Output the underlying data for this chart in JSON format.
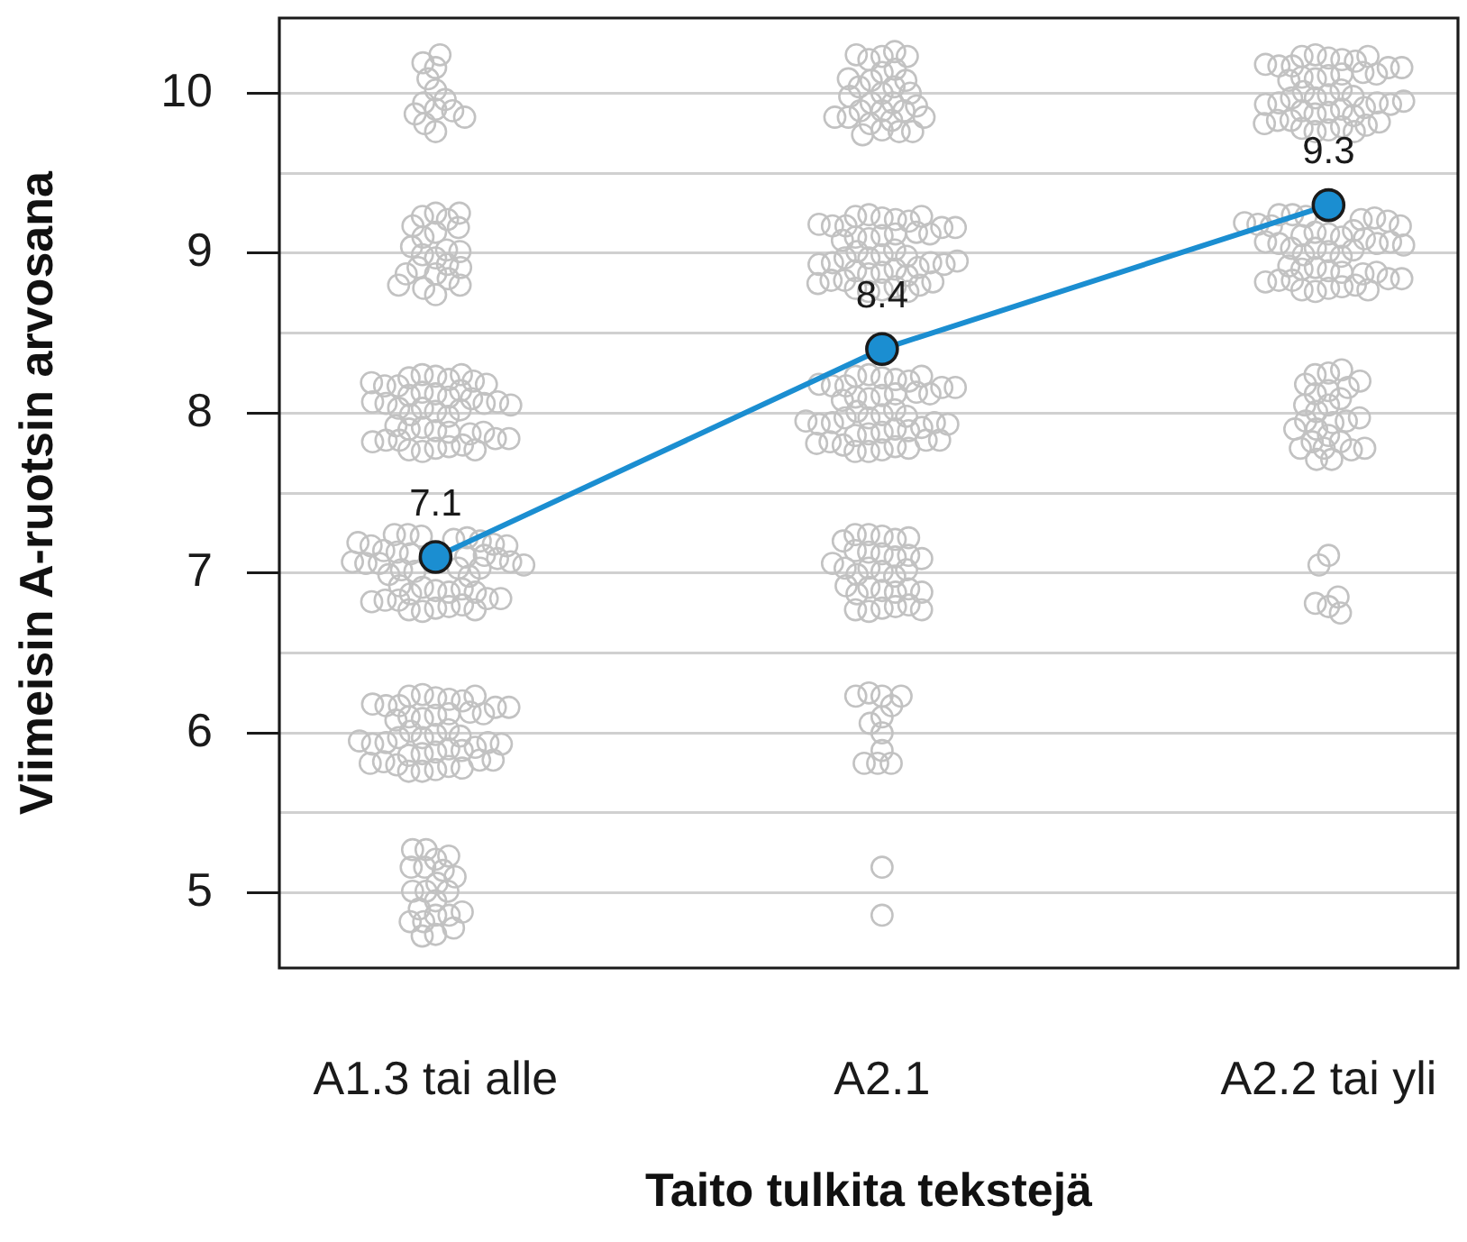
{
  "chart_data": {
    "type": "scatter",
    "xlabel": "Taito tulkita tekstejä",
    "ylabel": "Viimeisin A-ruotsin arvosana",
    "categories": [
      "A1.3 tai alle",
      "A2.1",
      "A2.2 tai yli"
    ],
    "ylim": [
      4.53,
      10.47
    ],
    "yticks": [
      5,
      {
        "value": 5.5,
        "label": null
      },
      6,
      {
        "value": 6.5,
        "label": null
      },
      7,
      {
        "value": 7.5,
        "label": null
      },
      8,
      {
        "value": 8.5,
        "label": null
      },
      9,
      {
        "value": 9.5,
        "label": null
      },
      10
    ],
    "grid": "y",
    "marker": "circle",
    "series": [
      {
        "color": "#c2c2c2",
        "x": [
          "A1.3 tai alle",
          "A1.3 tai alle",
          "A1.3 tai alle",
          "A1.3 tai alle",
          "A1.3 tai alle",
          "A1.3 tai alle",
          "A1.3 tai alle",
          "A1.3 tai alle",
          "A1.3 tai alle",
          "A1.3 tai alle",
          "A1.3 tai alle",
          "A1.3 tai alle",
          "A1.3 tai alle",
          "A1.3 tai alle",
          "A1.3 tai alle",
          "A1.3 tai alle",
          "A1.3 tai alle",
          "A1.3 tai alle",
          "A1.3 tai alle",
          "A1.3 tai alle",
          "A1.3 tai alle",
          "A1.3 tai alle",
          "A1.3 tai alle",
          "A1.3 tai alle",
          "A1.3 tai alle",
          "A1.3 tai alle",
          "A1.3 tai alle",
          "A1.3 tai alle",
          "A1.3 tai alle",
          "A1.3 tai alle",
          "A1.3 tai alle",
          "A1.3 tai alle",
          "A1.3 tai alle",
          "A1.3 tai alle",
          "A1.3 tai alle",
          "A1.3 tai alle",
          "A1.3 tai alle",
          "A1.3 tai alle",
          "A1.3 tai alle",
          "A1.3 tai alle",
          "A1.3 tai alle",
          "A1.3 tai alle",
          "A1.3 tai alle",
          "A1.3 tai alle",
          "A1.3 tai alle",
          "A1.3 tai alle",
          "A1.3 tai alle",
          "A1.3 tai alle",
          "A1.3 tai alle",
          "A1.3 tai alle",
          "A1.3 tai alle",
          "A1.3 tai alle",
          "A1.3 tai alle",
          "A1.3 tai alle",
          "A1.3 tai alle",
          "A1.3 tai alle",
          "A1.3 tai alle",
          "A1.3 tai alle",
          "A1.3 tai alle",
          "A1.3 tai alle",
          "A1.3 tai alle",
          "A1.3 tai alle",
          "A1.3 tai alle",
          "A1.3 tai alle",
          "A1.3 tai alle",
          "A1.3 tai alle",
          "A1.3 tai alle",
          "A1.3 tai alle",
          "A1.3 tai alle",
          "A1.3 tai alle",
          "A1.3 tai alle",
          "A1.3 tai alle",
          "A1.3 tai alle",
          "A1.3 tai alle",
          "A1.3 tai alle",
          "A1.3 tai alle",
          "A1.3 tai alle",
          "A1.3 tai alle",
          "A1.3 tai alle",
          "A1.3 tai alle",
          "A1.3 tai alle",
          "A1.3 tai alle",
          "A1.3 tai alle",
          "A1.3 tai alle",
          "A1.3 tai alle",
          "A1.3 tai alle",
          "A1.3 tai alle",
          "A1.3 tai alle",
          "A1.3 tai alle",
          "A1.3 tai alle",
          "A1.3 tai alle",
          "A1.3 tai alle",
          "A1.3 tai alle",
          "A1.3 tai alle",
          "A1.3 tai alle",
          "A1.3 tai alle",
          "A1.3 tai alle",
          "A1.3 tai alle",
          "A1.3 tai alle",
          "A1.3 tai alle",
          "A1.3 tai alle",
          "A1.3 tai alle",
          "A1.3 tai alle",
          "A1.3 tai alle",
          "A1.3 tai alle",
          "A1.3 tai alle",
          "A1.3 tai alle",
          "A1.3 tai alle",
          "A1.3 tai alle",
          "A1.3 tai alle",
          "A1.3 tai alle",
          "A1.3 tai alle",
          "A1.3 tai alle",
          "A1.3 tai alle",
          "A1.3 tai alle",
          "A1.3 tai alle",
          "A1.3 tai alle",
          "A1.3 tai alle",
          "A1.3 tai alle",
          "A1.3 tai alle",
          "A1.3 tai alle",
          "A1.3 tai alle",
          "A1.3 tai alle",
          "A1.3 tai alle",
          "A1.3 tai alle",
          "A1.3 tai alle",
          "A1.3 tai alle",
          "A1.3 tai alle",
          "A1.3 tai alle",
          "A1.3 tai alle",
          "A1.3 tai alle",
          "A1.3 tai alle",
          "A1.3 tai alle",
          "A1.3 tai alle",
          "A1.3 tai alle",
          "A1.3 tai alle",
          "A1.3 tai alle",
          "A1.3 tai alle",
          "A1.3 tai alle",
          "A1.3 tai alle",
          "A1.3 tai alle",
          "A1.3 tai alle",
          "A1.3 tai alle",
          "A1.3 tai alle",
          "A1.3 tai alle",
          "A1.3 tai alle",
          "A1.3 tai alle",
          "A1.3 tai alle",
          "A1.3 tai alle",
          "A1.3 tai alle",
          "A1.3 tai alle",
          "A1.3 tai alle",
          "A1.3 tai alle",
          "A1.3 tai alle",
          "A1.3 tai alle",
          "A1.3 tai alle",
          "A1.3 tai alle",
          "A1.3 tai alle",
          "A1.3 tai alle",
          "A1.3 tai alle",
          "A1.3 tai alle",
          "A1.3 tai alle",
          "A1.3 tai alle",
          "A1.3 tai alle",
          "A1.3 tai alle",
          "A1.3 tai alle",
          "A1.3 tai alle",
          "A1.3 tai alle",
          "A1.3 tai alle",
          "A1.3 tai alle",
          "A1.3 tai alle",
          "A1.3 tai alle",
          "A1.3 tai alle",
          "A1.3 tai alle",
          "A1.3 tai alle",
          "A1.3 tai alle",
          "A1.3 tai alle",
          "A1.3 tai alle",
          "A1.3 tai alle",
          "A1.3 tai alle",
          "A1.3 tai alle",
          "A1.3 tai alle",
          "A1.3 tai alle",
          "A1.3 tai alle",
          "A1.3 tai alle",
          "A1.3 tai alle",
          "A1.3 tai alle",
          "A1.3 tai alle",
          "A1.3 tai alle",
          "A1.3 tai alle",
          "A1.3 tai alle",
          "A1.3 tai alle",
          "A1.3 tai alle"
        ],
        "values": [
          10.16,
          10.02,
          9.9,
          9.94,
          10.19,
          10.24,
          10.09,
          9.96,
          9.89,
          9.76,
          9.81,
          9.87,
          9.85,
          9.13,
          9.25,
          9.23,
          9.21,
          8.97,
          8.87,
          8.74,
          8.78,
          8.84,
          8.8,
          8.99,
          9.1,
          9.02,
          8.91,
          9.04,
          8.87,
          9.17,
          9.16,
          8.93,
          9.01,
          9.25,
          8.91,
          8.8,
          7.78,
          7.76,
          7.79,
          7.77,
          7.8,
          7.77,
          7.89,
          7.91,
          7.88,
          7.9,
          7.87,
          7.92,
          7.88,
          8.01,
          8.03,
          7.98,
          8.02,
          7.99,
          8.03,
          8.12,
          8.1,
          8.13,
          8.11,
          8.14,
          8.09,
          8.23,
          8.21,
          8.24,
          8.22,
          8.24,
          8.2,
          8.06,
          7.83,
          7.83,
          7.84,
          7.82,
          7.84,
          8.06,
          8.07,
          8.07,
          8.05,
          8.17,
          8.18,
          8.17,
          8.19,
          6.78,
          6.76,
          6.79,
          6.77,
          6.8,
          6.77,
          6.89,
          6.91,
          6.88,
          6.9,
          6.87,
          6.92,
          6.88,
          7.01,
          7.03,
          6.98,
          7.02,
          6.99,
          7.03,
          7.12,
          7.1,
          7.13,
          7.11,
          7.14,
          7.09,
          7.23,
          7.21,
          7.24,
          7.22,
          7.24,
          7.2,
          7.06,
          6.83,
          6.83,
          6.84,
          6.82,
          6.84,
          7.06,
          7.07,
          7.07,
          7.05,
          7.17,
          7.18,
          7.17,
          7.19,
          6.22,
          6.24,
          6.21,
          6.23,
          6.2,
          6.23,
          6.11,
          6.09,
          6.12,
          6.1,
          6.13,
          6.08,
          6.12,
          5.99,
          5.97,
          6.02,
          5.98,
          6.01,
          5.97,
          5.88,
          5.9,
          5.87,
          5.89,
          5.86,
          5.91,
          5.77,
          5.79,
          5.76,
          5.78,
          5.76,
          5.8,
          5.94,
          6.17,
          6.17,
          6.16,
          6.18,
          6.16,
          5.94,
          5.93,
          5.93,
          5.95,
          5.83,
          5.82,
          5.83,
          5.81,
          5.21,
          5.27,
          5.16,
          4.95,
          4.86,
          4.82,
          4.74,
          5.23,
          5.27,
          5.14,
          5.01,
          5.06,
          5.01,
          4.86,
          4.82,
          4.88,
          4.78,
          4.73,
          5.01,
          5.1,
          4.9,
          5.16
        ]
      },
      {
        "color": "#c2c2c2",
        "x": [
          "A2.1",
          "A2.1",
          "A2.1",
          "A2.1",
          "A2.1",
          "A2.1",
          "A2.1",
          "A2.1",
          "A2.1",
          "A2.1",
          "A2.1",
          "A2.1",
          "A2.1",
          "A2.1",
          "A2.1",
          "A2.1",
          "A2.1",
          "A2.1",
          "A2.1",
          "A2.1",
          "A2.1",
          "A2.1",
          "A2.1",
          "A2.1",
          "A2.1",
          "A2.1",
          "A2.1",
          "A2.1",
          "A2.1",
          "A2.1",
          "A2.1",
          "A2.1",
          "A2.1",
          "A2.1",
          "A2.1",
          "A2.1",
          "A2.1",
          "A2.1",
          "A2.1",
          "A2.1",
          "A2.1",
          "A2.1",
          "A2.1",
          "A2.1",
          "A2.1",
          "A2.1",
          "A2.1",
          "A2.1",
          "A2.1",
          "A2.1",
          "A2.1",
          "A2.1",
          "A2.1",
          "A2.1",
          "A2.1",
          "A2.1",
          "A2.1",
          "A2.1",
          "A2.1",
          "A2.1",
          "A2.1",
          "A2.1",
          "A2.1",
          "A2.1",
          "A2.1",
          "A2.1",
          "A2.1",
          "A2.1",
          "A2.1",
          "A2.1",
          "A2.1",
          "A2.1",
          "A2.1",
          "A2.1",
          "A2.1",
          "A2.1",
          "A2.1",
          "A2.1",
          "A2.1",
          "A2.1",
          "A2.1",
          "A2.1",
          "A2.1",
          "A2.1",
          "A2.1",
          "A2.1",
          "A2.1",
          "A2.1",
          "A2.1",
          "A2.1",
          "A2.1",
          "A2.1",
          "A2.1",
          "A2.1",
          "A2.1",
          "A2.1",
          "A2.1",
          "A2.1",
          "A2.1",
          "A2.1",
          "A2.1",
          "A2.1",
          "A2.1",
          "A2.1",
          "A2.1",
          "A2.1",
          "A2.1",
          "A2.1",
          "A2.1",
          "A2.1",
          "A2.1",
          "A2.1",
          "A2.1",
          "A2.1",
          "A2.1",
          "A2.1",
          "A2.1",
          "A2.1",
          "A2.1",
          "A2.1",
          "A2.1",
          "A2.1",
          "A2.1",
          "A2.1",
          "A2.1",
          "A2.1",
          "A2.1",
          "A2.1",
          "A2.1",
          "A2.1",
          "A2.1",
          "A2.1",
          "A2.1",
          "A2.1",
          "A2.1",
          "A2.1",
          "A2.1",
          "A2.1",
          "A2.1",
          "A2.1",
          "A2.1",
          "A2.1",
          "A2.1",
          "A2.1",
          "A2.1",
          "A2.1",
          "A2.1",
          "A2.1",
          "A2.1",
          "A2.1",
          "A2.1",
          "A2.1",
          "A2.1",
          "A2.1",
          "A2.1",
          "A2.1",
          "A2.1",
          "A2.1",
          "A2.1",
          "A2.1",
          "A2.1",
          "A2.1",
          "A2.1",
          "A2.1",
          "A2.1",
          "A2.1"
        ],
        "values": [
          10.13,
          10.23,
          10.21,
          10.0,
          9.89,
          9.94,
          9.77,
          9.81,
          10.15,
          10.26,
          10.23,
          10.08,
          10.04,
          9.94,
          9.89,
          9.83,
          9.89,
          9.76,
          9.74,
          9.76,
          10.04,
          10.08,
          10.24,
          10.09,
          10.0,
          9.98,
          9.85,
          9.92,
          9.85,
          9.85,
          9.22,
          9.24,
          9.21,
          9.23,
          9.2,
          9.23,
          9.11,
          9.09,
          9.12,
          9.1,
          9.13,
          9.08,
          9.12,
          8.99,
          8.97,
          9.02,
          8.98,
          9.01,
          8.97,
          8.88,
          8.9,
          8.87,
          8.89,
          8.86,
          8.91,
          8.77,
          8.79,
          8.76,
          8.78,
          8.76,
          8.8,
          8.94,
          9.17,
          9.17,
          9.16,
          9.18,
          9.16,
          8.94,
          8.93,
          8.93,
          8.95,
          8.83,
          8.82,
          8.83,
          8.81,
          8.22,
          8.24,
          8.21,
          8.23,
          8.2,
          8.23,
          8.11,
          8.09,
          8.12,
          8.1,
          8.13,
          8.08,
          8.12,
          7.99,
          7.97,
          8.02,
          7.98,
          8.01,
          7.97,
          7.88,
          7.9,
          7.87,
          7.89,
          7.86,
          7.91,
          7.77,
          7.79,
          7.76,
          7.78,
          7.76,
          7.8,
          7.94,
          8.17,
          8.17,
          8.16,
          8.18,
          8.16,
          7.94,
          7.93,
          7.93,
          7.95,
          7.83,
          7.82,
          7.83,
          7.81,
          6.78,
          6.76,
          6.79,
          6.77,
          6.8,
          6.77,
          6.89,
          6.91,
          6.88,
          6.9,
          6.87,
          6.92,
          6.88,
          7.01,
          7.03,
          6.98,
          7.02,
          6.99,
          7.03,
          7.12,
          7.1,
          7.13,
          7.11,
          7.14,
          7.09,
          7.23,
          7.21,
          7.24,
          7.22,
          7.24,
          7.2,
          7.06,
          6.23,
          6.25,
          6.17,
          6.1,
          6.0,
          5.89,
          5.81,
          5.81,
          6.23,
          6.23,
          6.06,
          5.81,
          5.16,
          4.86
        ]
      },
      {
        "color": "#c2c2c2",
        "x": [
          "A2.2 tai yli",
          "A2.2 tai yli",
          "A2.2 tai yli",
          "A2.2 tai yli",
          "A2.2 tai yli",
          "A2.2 tai yli",
          "A2.2 tai yli",
          "A2.2 tai yli",
          "A2.2 tai yli",
          "A2.2 tai yli",
          "A2.2 tai yli",
          "A2.2 tai yli",
          "A2.2 tai yli",
          "A2.2 tai yli",
          "A2.2 tai yli",
          "A2.2 tai yli",
          "A2.2 tai yli",
          "A2.2 tai yli",
          "A2.2 tai yli",
          "A2.2 tai yli",
          "A2.2 tai yli",
          "A2.2 tai yli",
          "A2.2 tai yli",
          "A2.2 tai yli",
          "A2.2 tai yli",
          "A2.2 tai yli",
          "A2.2 tai yli",
          "A2.2 tai yli",
          "A2.2 tai yli",
          "A2.2 tai yli",
          "A2.2 tai yli",
          "A2.2 tai yli",
          "A2.2 tai yli",
          "A2.2 tai yli",
          "A2.2 tai yli",
          "A2.2 tai yli",
          "A2.2 tai yli",
          "A2.2 tai yli",
          "A2.2 tai yli",
          "A2.2 tai yli",
          "A2.2 tai yli",
          "A2.2 tai yli",
          "A2.2 tai yli",
          "A2.2 tai yli",
          "A2.2 tai yli",
          "A2.2 tai yli",
          "A2.2 tai yli",
          "A2.2 tai yli",
          "A2.2 tai yli",
          "A2.2 tai yli",
          "A2.2 tai yli",
          "A2.2 tai yli",
          "A2.2 tai yli",
          "A2.2 tai yli",
          "A2.2 tai yli",
          "A2.2 tai yli",
          "A2.2 tai yli",
          "A2.2 tai yli",
          "A2.2 tai yli",
          "A2.2 tai yli",
          "A2.2 tai yli",
          "A2.2 tai yli",
          "A2.2 tai yli",
          "A2.2 tai yli",
          "A2.2 tai yli",
          "A2.2 tai yli",
          "A2.2 tai yli",
          "A2.2 tai yli",
          "A2.2 tai yli",
          "A2.2 tai yli",
          "A2.2 tai yli",
          "A2.2 tai yli",
          "A2.2 tai yli",
          "A2.2 tai yli",
          "A2.2 tai yli",
          "A2.2 tai yli",
          "A2.2 tai yli",
          "A2.2 tai yli",
          "A2.2 tai yli",
          "A2.2 tai yli",
          "A2.2 tai yli",
          "A2.2 tai yli",
          "A2.2 tai yli",
          "A2.2 tai yli",
          "A2.2 tai yli",
          "A2.2 tai yli",
          "A2.2 tai yli",
          "A2.2 tai yli",
          "A2.2 tai yli",
          "A2.2 tai yli",
          "A2.2 tai yli",
          "A2.2 tai yli",
          "A2.2 tai yli",
          "A2.2 tai yli",
          "A2.2 tai yli",
          "A2.2 tai yli",
          "A2.2 tai yli",
          "A2.2 tai yli",
          "A2.2 tai yli",
          "A2.2 tai yli",
          "A2.2 tai yli",
          "A2.2 tai yli",
          "A2.2 tai yli",
          "A2.2 tai yli",
          "A2.2 tai yli",
          "A2.2 tai yli",
          "A2.2 tai yli",
          "A2.2 tai yli",
          "A2.2 tai yli",
          "A2.2 tai yli",
          "A2.2 tai yli",
          "A2.2 tai yli",
          "A2.2 tai yli",
          "A2.2 tai yli",
          "A2.2 tai yli",
          "A2.2 tai yli",
          "A2.2 tai yli",
          "A2.2 tai yli",
          "A2.2 tai yli",
          "A2.2 tai yli",
          "A2.2 tai yli",
          "A2.2 tai yli",
          "A2.2 tai yli"
        ],
        "values": [
          10.22,
          10.24,
          10.21,
          10.23,
          10.2,
          10.23,
          10.11,
          10.09,
          10.12,
          10.1,
          10.13,
          10.08,
          10.12,
          9.99,
          9.97,
          10.02,
          9.98,
          10.01,
          9.97,
          9.88,
          9.9,
          9.87,
          9.89,
          9.86,
          9.91,
          9.77,
          9.79,
          9.76,
          9.78,
          9.76,
          9.8,
          9.94,
          10.17,
          10.17,
          10.16,
          10.18,
          10.16,
          9.94,
          9.93,
          9.93,
          9.95,
          9.83,
          9.82,
          9.83,
          9.81,
          8.78,
          8.76,
          8.79,
          8.77,
          8.8,
          8.77,
          8.89,
          8.91,
          8.88,
          8.9,
          8.87,
          8.92,
          8.88,
          9.01,
          9.03,
          8.98,
          9.02,
          8.99,
          9.03,
          9.12,
          9.1,
          9.13,
          9.11,
          9.14,
          9.09,
          9.23,
          9.21,
          9.24,
          9.22,
          9.24,
          9.2,
          9.06,
          8.83,
          8.83,
          8.84,
          8.82,
          8.84,
          9.06,
          9.07,
          9.07,
          9.05,
          9.17,
          9.18,
          9.17,
          9.19,
          8.14,
          8.25,
          8.24,
          8.27,
          8.12,
          7.86,
          8.05,
          8.01,
          8.09,
          8.05,
          7.9,
          7.94,
          7.82,
          7.78,
          7.82,
          7.77,
          7.71,
          7.78,
          7.95,
          7.95,
          7.97,
          8.16,
          8.18,
          8.2,
          7.9,
          7.71,
          7.78,
          7.11,
          7.05,
          6.79,
          6.81,
          6.85,
          6.75
        ]
      },
      {
        "type": "line",
        "color": "#1b8ed1",
        "values": [
          7.1,
          8.4,
          9.3
        ],
        "value_labels": [
          "7.1",
          "8.4",
          "9.3"
        ]
      }
    ]
  }
}
